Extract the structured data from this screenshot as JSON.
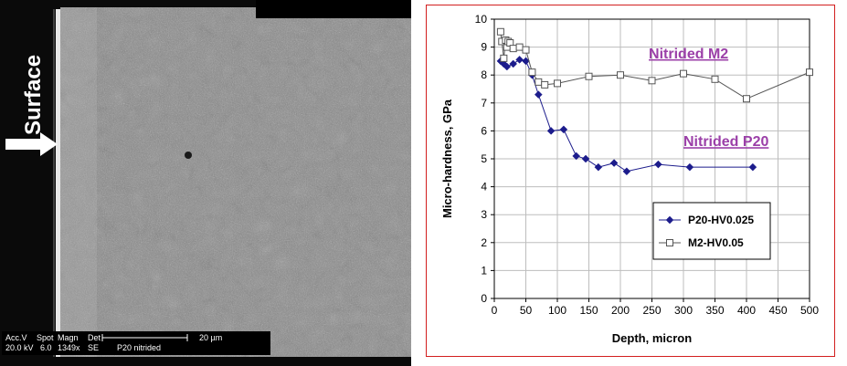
{
  "micrograph": {
    "surface_label": "Surface",
    "info_row1": [
      "Acc.V",
      "Spot",
      "Magn",
      "Det"
    ],
    "info_row2": [
      "20.0 kV",
      "6.0",
      "1349x",
      "SE"
    ],
    "scale_bar_label": "20 µm",
    "sample_name": "P20 nitrided"
  },
  "chart_data": {
    "type": "line",
    "title": "",
    "xlabel": "Depth, micron",
    "ylabel": "Micro-hardness, GPa",
    "xlim": [
      0,
      500
    ],
    "ylim": [
      0,
      10
    ],
    "xticks": [
      0,
      50,
      100,
      150,
      200,
      250,
      300,
      350,
      400,
      450,
      500
    ],
    "yticks": [
      0,
      1,
      2,
      3,
      4,
      5,
      6,
      7,
      8,
      9,
      10
    ],
    "grid": true,
    "legend_position": "bottom-right",
    "annotations": [
      {
        "text": "Nitrided M2",
        "color": "#9b3fa8"
      },
      {
        "text": "Nitrided P20",
        "color": "#9b3fa8"
      }
    ],
    "series": [
      {
        "name": "P20-HV0.025",
        "color": "#1c1c8c",
        "marker": "diamond",
        "x": [
          10,
          15,
          20,
          30,
          40,
          50,
          60,
          70,
          90,
          110,
          130,
          145,
          165,
          190,
          210,
          260,
          310,
          410
        ],
        "y": [
          8.5,
          8.4,
          8.3,
          8.4,
          8.55,
          8.5,
          8.0,
          7.3,
          6.0,
          6.05,
          5.1,
          5.0,
          4.7,
          4.85,
          4.55,
          4.8,
          4.7,
          4.7
        ]
      },
      {
        "name": "M2-HV0.05",
        "color": "#555555",
        "marker": "square",
        "x": [
          10,
          12,
          15,
          18,
          20,
          22,
          25,
          30,
          40,
          50,
          60,
          70,
          80,
          100,
          150,
          200,
          250,
          300,
          350,
          400,
          500
        ],
        "y": [
          9.55,
          9.2,
          8.6,
          9.25,
          9.0,
          9.2,
          9.15,
          8.95,
          9.0,
          8.9,
          8.1,
          7.75,
          7.65,
          7.7,
          7.95,
          8.0,
          7.8,
          8.05,
          7.85,
          7.15,
          8.1
        ]
      }
    ]
  }
}
